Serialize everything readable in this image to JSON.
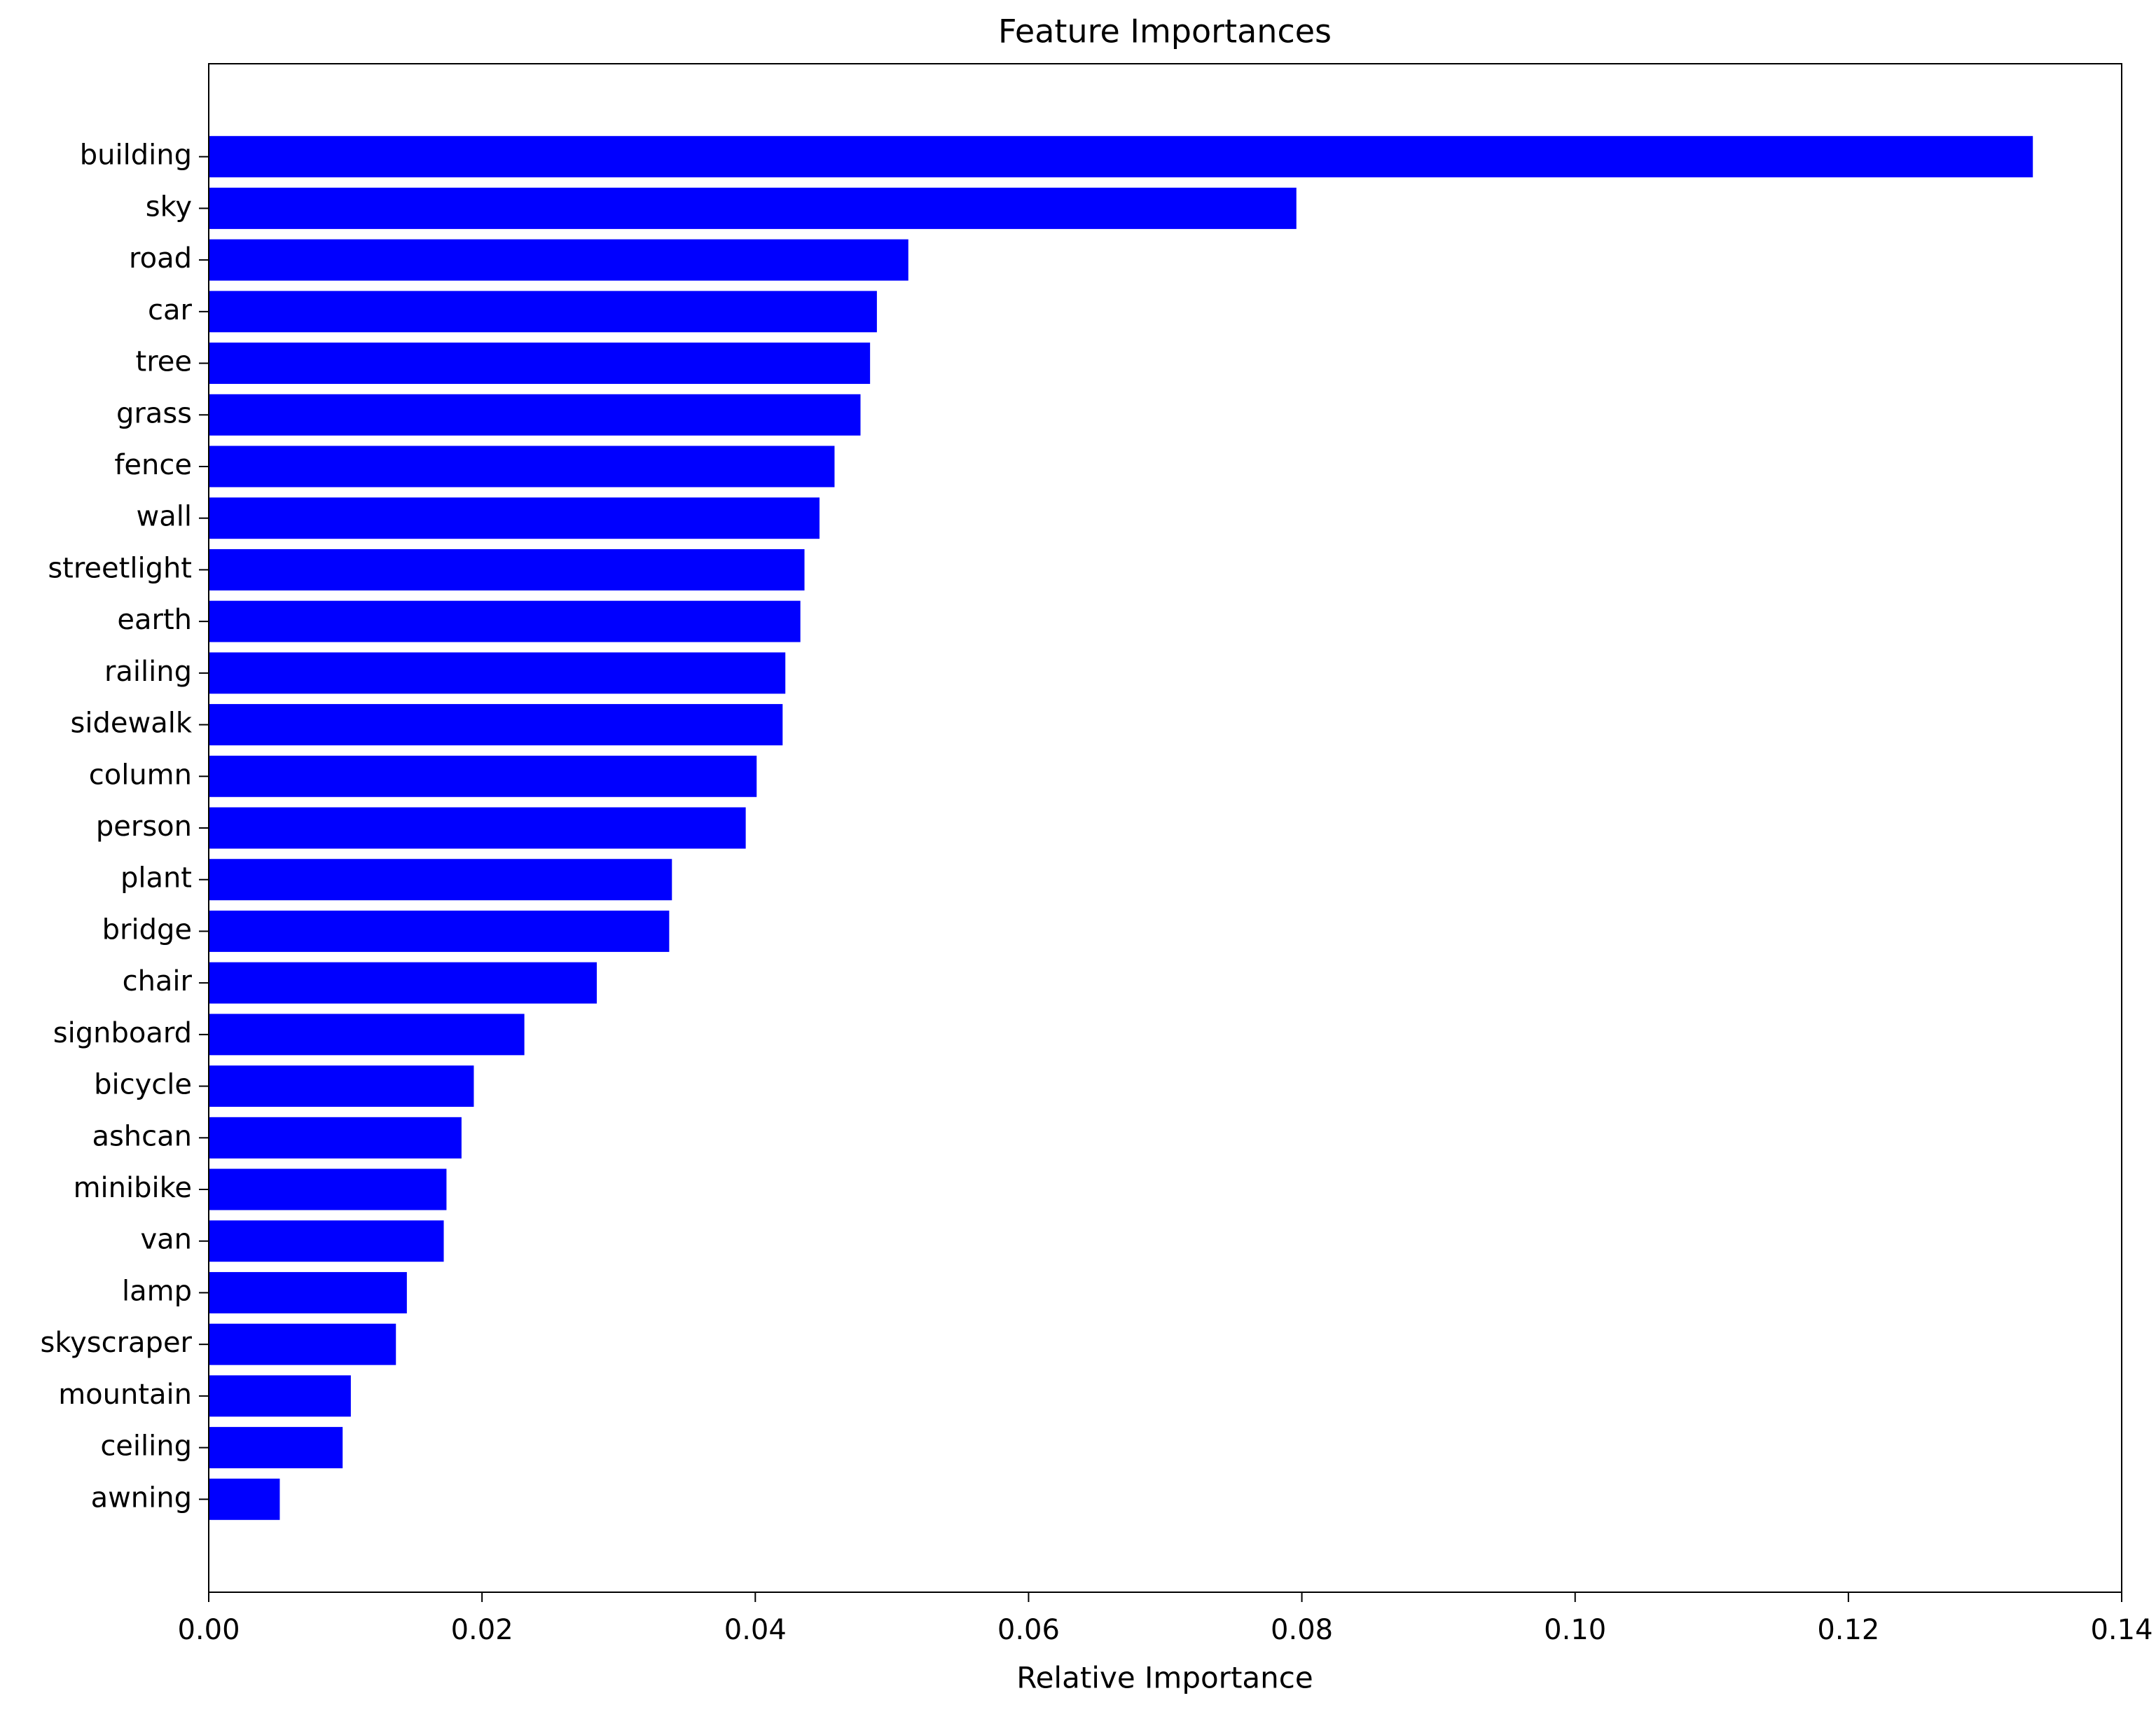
{
  "chart_data": {
    "type": "barh",
    "title": "Feature Importances",
    "xlabel": "Relative Importance",
    "categories": [
      "building",
      "sky",
      "road",
      "car",
      "tree",
      "grass",
      "fence",
      "wall",
      "streetlight",
      "earth",
      "railing",
      "sidewalk",
      "column",
      "person",
      "plant",
      "bridge",
      "chair",
      "signboard",
      "bicycle",
      "ashcan",
      "minibike",
      "van",
      "lamp",
      "skyscraper",
      "mountain",
      "ceiling",
      "awning"
    ],
    "values": [
      0.1335,
      0.0796,
      0.0512,
      0.0489,
      0.0484,
      0.0477,
      0.0458,
      0.0447,
      0.0436,
      0.0433,
      0.0422,
      0.042,
      0.0401,
      0.0393,
      0.0339,
      0.0337,
      0.0284,
      0.0231,
      0.0194,
      0.0185,
      0.0174,
      0.0172,
      0.0145,
      0.0137,
      0.0104,
      0.0098,
      0.0052
    ],
    "color": "#0000ff",
    "xlim": [
      0,
      0.14
    ],
    "xticks": [
      {
        "value": 0,
        "label": "0.00"
      },
      {
        "value": 0.02,
        "label": "0.02"
      },
      {
        "value": 0.04,
        "label": "0.04"
      },
      {
        "value": 0.06,
        "label": "0.06"
      },
      {
        "value": 0.08,
        "label": "0.08"
      },
      {
        "value": 0.1,
        "label": "0.10"
      },
      {
        "value": 0.12,
        "label": "0.12"
      },
      {
        "value": 0.14,
        "label": "0.14"
      }
    ],
    "grid": false
  }
}
